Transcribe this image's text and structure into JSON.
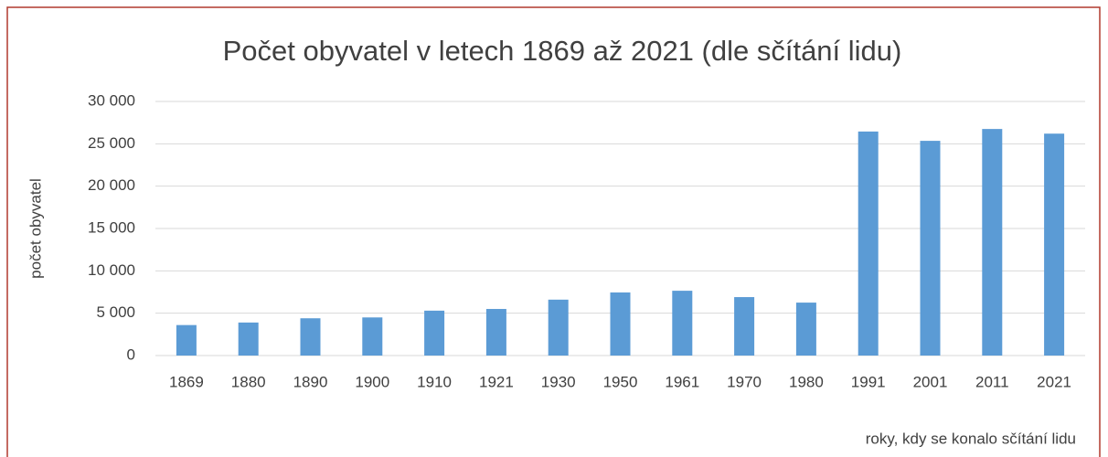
{
  "chart_data": {
    "type": "bar",
    "title": "Počet obyvatel v letech 1869 až 2021 (dle sčítání lidu)",
    "y_label": "počet obyvatel",
    "x_label": "roky, kdy se konalo sčítání lidu",
    "categories": [
      "1869",
      "1880",
      "1890",
      "1900",
      "1910",
      "1921",
      "1930",
      "1950",
      "1961",
      "1970",
      "1980",
      "1991",
      "2001",
      "2011",
      "2021"
    ],
    "values": [
      3600,
      3900,
      4400,
      4500,
      5300,
      5500,
      6600,
      7450,
      7650,
      6900,
      6250,
      26450,
      25350,
      26750,
      26200
    ],
    "color": "#5b9bd5",
    "ylim": [
      0,
      30000
    ],
    "yticks": [
      0,
      {
        "value": 5000,
        "label": "5 000"
      },
      {
        "value": 10000,
        "label": "10 000"
      },
      {
        "value": 15000,
        "label": "15 000"
      },
      {
        "value": 20000,
        "label": "20 000"
      },
      {
        "value": 25000,
        "label": "25 000"
      },
      {
        "value": 30000,
        "label": "30 000"
      }
    ],
    "grid": true
  }
}
